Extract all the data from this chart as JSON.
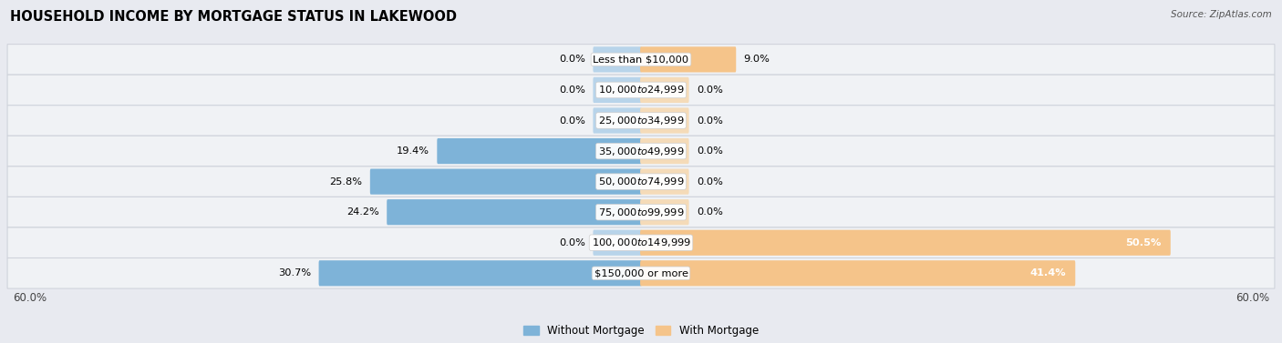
{
  "title": "HOUSEHOLD INCOME BY MORTGAGE STATUS IN LAKEWOOD",
  "source": "Source: ZipAtlas.com",
  "categories": [
    "Less than $10,000",
    "$10,000 to $24,999",
    "$25,000 to $34,999",
    "$35,000 to $49,999",
    "$50,000 to $74,999",
    "$75,000 to $99,999",
    "$100,000 to $149,999",
    "$150,000 or more"
  ],
  "without_mortgage": [
    0.0,
    0.0,
    0.0,
    19.4,
    25.8,
    24.2,
    0.0,
    30.7
  ],
  "with_mortgage": [
    9.0,
    0.0,
    0.0,
    0.0,
    0.0,
    0.0,
    50.5,
    41.4
  ],
  "color_without": "#7EB3D8",
  "color_with": "#F5C48A",
  "color_without_stub": "#b8d4ea",
  "color_with_stub": "#f5dbb8",
  "background_color": "#e8eaf0",
  "row_bg_color": "#f0f2f5",
  "row_border_color": "#d0d4dc",
  "xlim": 60.0,
  "stub_size": 4.5,
  "title_fontsize": 10.5,
  "label_fontsize": 8.2,
  "value_fontsize": 8.2,
  "tick_fontsize": 8.5,
  "legend_fontsize": 8.5
}
